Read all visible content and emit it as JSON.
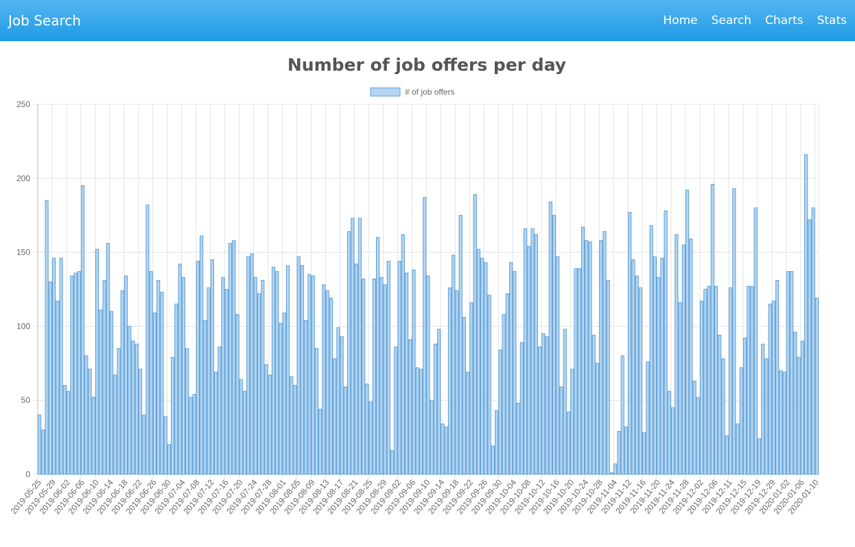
{
  "nav": {
    "brand": "Job Search",
    "links": [
      "Home",
      "Search",
      "Charts",
      "Stats"
    ]
  },
  "chart_data": {
    "type": "bar",
    "title": "Number of job offers per day",
    "series": [
      {
        "name": "# of job offers",
        "color": "#b3d5f2",
        "border": "#5d9fd6",
        "values": [
          40,
          30,
          185,
          130,
          146,
          117,
          146,
          60,
          56,
          134,
          136,
          137,
          195,
          80,
          71,
          52,
          152,
          111,
          131,
          156,
          110,
          67,
          85,
          124,
          134,
          100,
          90,
          88,
          71,
          40,
          182,
          137,
          109,
          131,
          123,
          39,
          20,
          79,
          115,
          142,
          133,
          85,
          52,
          54,
          144,
          161,
          104,
          126,
          145,
          69,
          86,
          133,
          125,
          156,
          158,
          108,
          64,
          56,
          147,
          149,
          133,
          122,
          131,
          74,
          67,
          140,
          137,
          102,
          109,
          141,
          66,
          60,
          147,
          141,
          104,
          135,
          134,
          85,
          44,
          128,
          124,
          119,
          78,
          99,
          93,
          59,
          164,
          173,
          142,
          173,
          132,
          61,
          49,
          132,
          160,
          133,
          128,
          144,
          16,
          86,
          144,
          162,
          136,
          91,
          138,
          72,
          71,
          187,
          134,
          50,
          88,
          98,
          34,
          32,
          126,
          148,
          124,
          175,
          106,
          69,
          116,
          189,
          152,
          146,
          143,
          121,
          19,
          43,
          84,
          108,
          122,
          143,
          137,
          48,
          89,
          166,
          154,
          166,
          162,
          86,
          95,
          93,
          184,
          175,
          147,
          59,
          98,
          42,
          71,
          139,
          139,
          167,
          158,
          157,
          94,
          75,
          158,
          164,
          131,
          1,
          7,
          29,
          80,
          32,
          177,
          145,
          134,
          126,
          28,
          76,
          168,
          147,
          133,
          146,
          178,
          56,
          45,
          162,
          116,
          155,
          192,
          159,
          63,
          52,
          117,
          125,
          127,
          196,
          127,
          94,
          78,
          26,
          126,
          193,
          34,
          72,
          92,
          127,
          127,
          180,
          24,
          88,
          78,
          115,
          117,
          131,
          70,
          69,
          137,
          137,
          96,
          79,
          90,
          216,
          172,
          180,
          119
        ]
      }
    ],
    "categories": [
      "2019-05-25",
      null,
      null,
      null,
      "2019-05-29",
      null,
      null,
      null,
      "2019-06-02",
      null,
      null,
      null,
      "2019-06-06",
      null,
      null,
      null,
      "2019-06-10",
      null,
      null,
      null,
      "2019-06-14",
      null,
      null,
      null,
      "2019-06-18",
      null,
      null,
      null,
      "2019-06-22",
      null,
      null,
      null,
      "2019-06-26",
      null,
      null,
      null,
      "2019-06-30",
      null,
      null,
      null,
      "2019-07-04",
      null,
      null,
      null,
      "2019-07-08",
      null,
      null,
      null,
      "2019-07-12",
      null,
      null,
      null,
      "2019-07-16",
      null,
      null,
      null,
      "2019-07-20",
      null,
      null,
      null,
      "2019-07-24",
      null,
      null,
      null,
      "2019-07-28",
      null,
      null,
      null,
      "2019-08-01",
      null,
      null,
      null,
      "2019-08-05",
      null,
      null,
      null,
      "2019-08-09",
      null,
      null,
      null,
      "2019-08-13",
      null,
      null,
      null,
      "2019-08-17",
      null,
      null,
      null,
      "2019-08-21",
      null,
      null,
      null,
      "2019-08-25",
      null,
      null,
      null,
      "2019-08-29",
      null,
      null,
      null,
      "2019-09-02",
      null,
      null,
      null,
      "2019-09-06",
      null,
      null,
      null,
      "2019-09-10",
      null,
      null,
      null,
      "2019-09-14",
      null,
      null,
      null,
      "2019-09-18",
      null,
      null,
      null,
      "2019-09-22",
      null,
      null,
      null,
      "2019-09-26",
      null,
      null,
      null,
      "2019-09-30",
      null,
      null,
      null,
      "2019-10-04",
      null,
      null,
      null,
      "2019-10-08",
      null,
      null,
      null,
      "2019-10-12",
      null,
      null,
      null,
      "2019-10-16",
      null,
      null,
      null,
      "2019-10-20",
      null,
      null,
      null,
      "2019-10-24",
      null,
      null,
      null,
      "2019-10-28",
      null,
      null,
      null,
      "2019-11-04",
      null,
      null,
      null,
      "2019-11-12",
      null,
      null,
      null,
      "2019-11-16",
      null,
      null,
      null,
      "2019-11-20",
      null,
      null,
      null,
      "2019-11-24",
      null,
      null,
      null,
      "2019-11-28",
      null,
      null,
      null,
      "2019-12-02",
      null,
      null,
      null,
      "2019-12-06",
      null,
      null,
      null,
      "2019-12-11",
      null,
      null,
      null,
      "2019-12-15",
      null,
      null,
      null,
      "2019-12-19",
      null,
      null,
      null,
      "2019-12-29",
      null,
      null,
      null,
      "2020-01-02",
      null,
      null,
      null,
      "2020-01-06",
      null,
      null,
      null,
      "2020-01-10"
    ],
    "ylim": [
      0,
      250
    ],
    "yticks": [
      0,
      50,
      100,
      150,
      200,
      250
    ],
    "grid": true,
    "legend": "top"
  }
}
